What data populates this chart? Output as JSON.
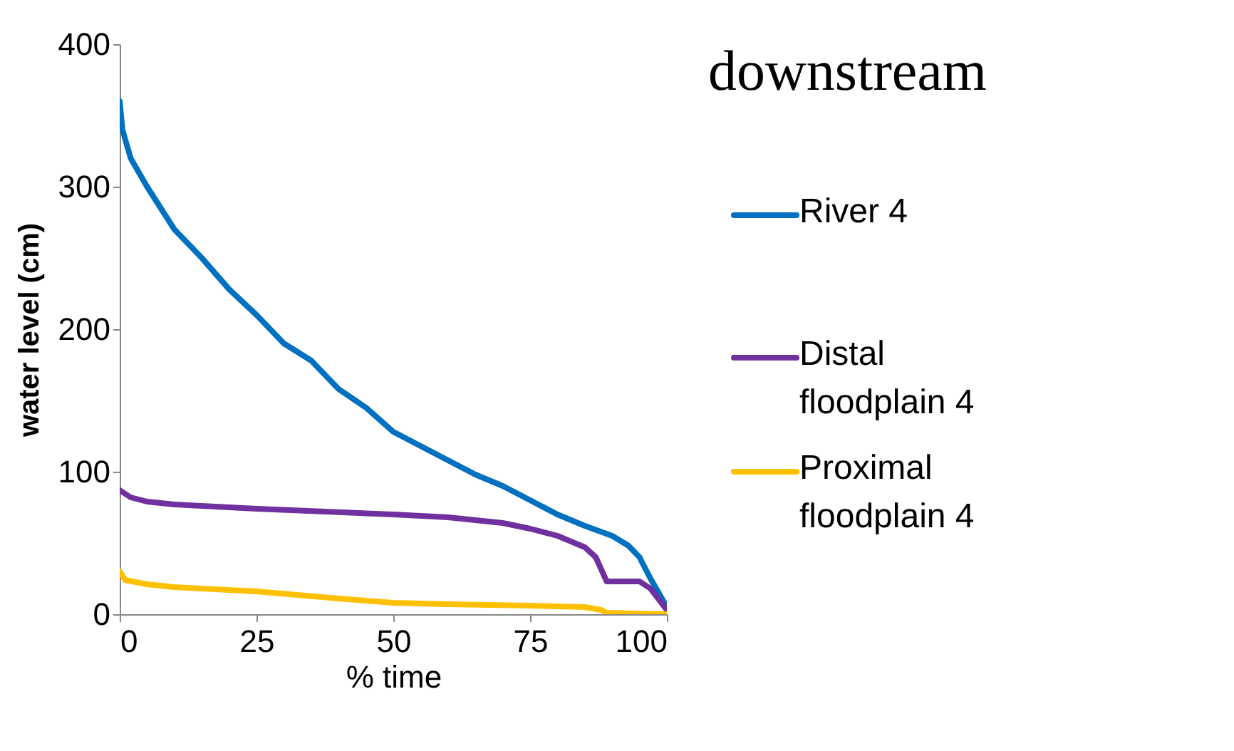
{
  "chart_data": {
    "type": "line",
    "title": "downstream",
    "xlabel": "% time",
    "ylabel": "water level (cm)",
    "xlim": [
      0,
      100
    ],
    "xticks": [
      0,
      25,
      50,
      75,
      100
    ],
    "ylim": [
      0,
      400
    ],
    "yticks": [
      0,
      100,
      200,
      300,
      400
    ],
    "grid": false,
    "legend": "right",
    "marker": "none",
    "line_style": "solid",
    "series": [
      {
        "name": "River 4",
        "color": "#0070c0",
        "x": [
          0,
          0.5,
          2,
          5,
          10,
          15,
          20,
          25,
          30,
          35,
          40,
          45,
          50,
          55,
          60,
          65,
          70,
          75,
          80,
          85,
          90,
          93,
          95,
          97,
          100
        ],
        "values": [
          360,
          340,
          320,
          300,
          270,
          250,
          228,
          210,
          190,
          178,
          158,
          145,
          128,
          118,
          108,
          98,
          90,
          80,
          70,
          62,
          55,
          48,
          40,
          25,
          5
        ]
      },
      {
        "name": "Distal floodplain 4",
        "color": "#7030a0",
        "x": [
          0,
          2,
          5,
          10,
          25,
          50,
          60,
          70,
          75,
          80,
          85,
          87,
          89,
          95,
          97,
          100
        ],
        "values": [
          87,
          82,
          79,
          77,
          74,
          70,
          68,
          64,
          60,
          55,
          47,
          40,
          23,
          23,
          18,
          3
        ]
      },
      {
        "name": "Proximal floodplain 4",
        "color": "#ffc000",
        "x": [
          0,
          1,
          5,
          10,
          25,
          40,
          50,
          60,
          75,
          85,
          88,
          89,
          100
        ],
        "values": [
          30,
          24,
          21,
          19,
          16,
          11,
          8,
          7,
          6,
          5,
          3,
          1,
          0
        ]
      }
    ]
  }
}
